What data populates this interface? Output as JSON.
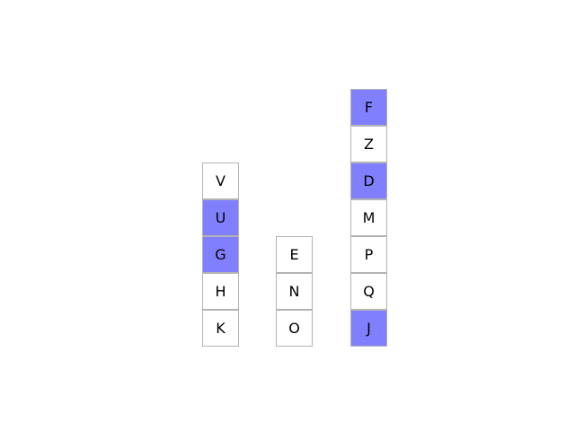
{
  "colors": {
    "highlight": "#8080ff",
    "normal": "#ffffff",
    "border": "#b3b3b3"
  },
  "stacks": [
    {
      "blocks": [
        {
          "label": "V",
          "highlighted": false
        },
        {
          "label": "U",
          "highlighted": true
        },
        {
          "label": "G",
          "highlighted": true
        },
        {
          "label": "H",
          "highlighted": false
        },
        {
          "label": "K",
          "highlighted": false
        }
      ]
    },
    {
      "blocks": [
        {
          "label": "E",
          "highlighted": false
        },
        {
          "label": "N",
          "highlighted": false
        },
        {
          "label": "O",
          "highlighted": false
        }
      ]
    },
    {
      "blocks": [
        {
          "label": "F",
          "highlighted": true
        },
        {
          "label": "Z",
          "highlighted": false
        },
        {
          "label": "D",
          "highlighted": true
        },
        {
          "label": "M",
          "highlighted": false
        },
        {
          "label": "P",
          "highlighted": false
        },
        {
          "label": "Q",
          "highlighted": false
        },
        {
          "label": "J",
          "highlighted": true
        }
      ]
    }
  ]
}
